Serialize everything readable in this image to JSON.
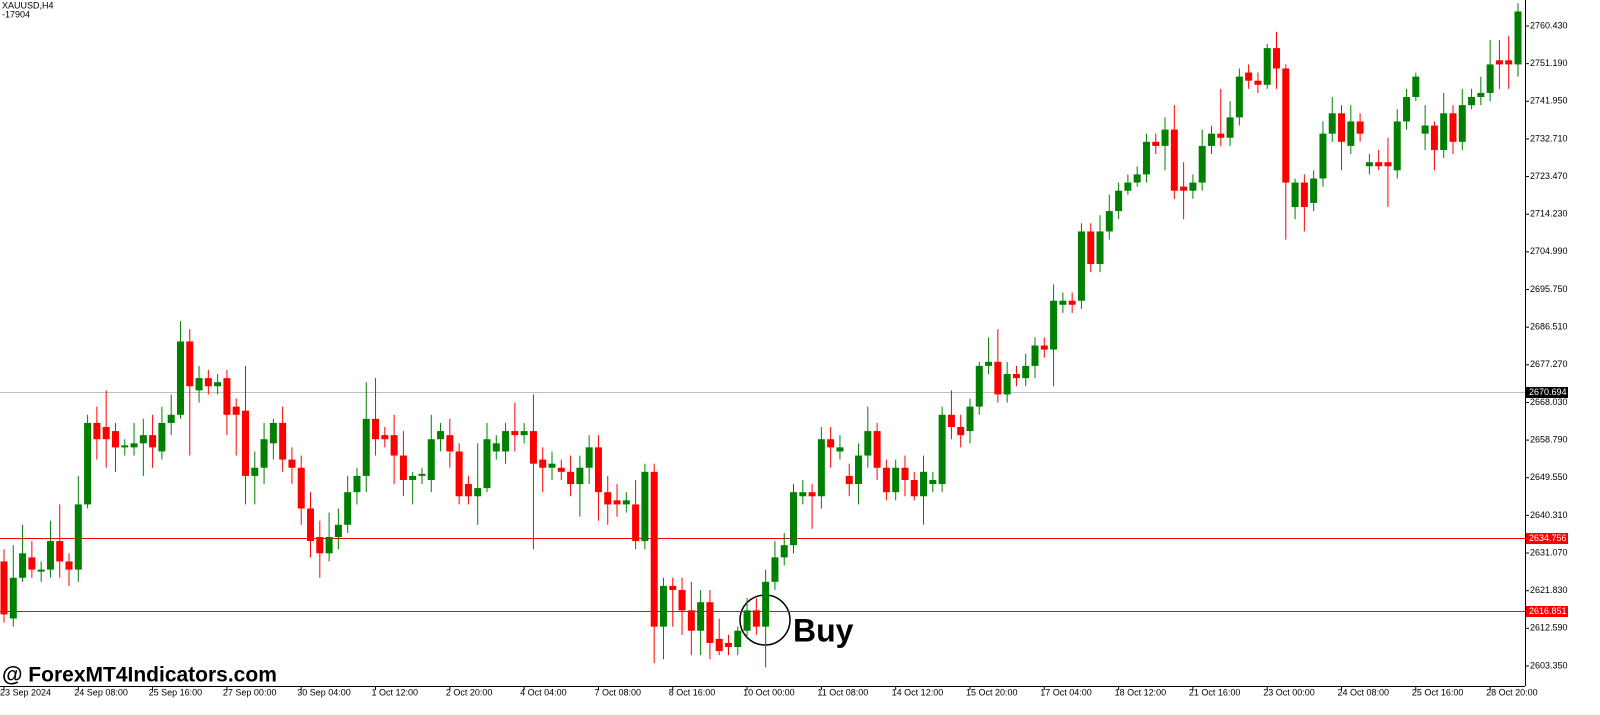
{
  "chart_data": {
    "type": "candlestick",
    "title": "XAUUSD,H4",
    "subtitle": "-17904",
    "categories": [
      "23 Sep 2024",
      null,
      null,
      null,
      null,
      null,
      null,
      null,
      "24 Sep 08:00",
      null,
      null,
      null,
      null,
      null,
      null,
      null,
      "25 Sep 16:00",
      null,
      null,
      null,
      null,
      null,
      null,
      null,
      "27 Sep 00:00",
      null,
      null,
      null,
      null,
      null,
      null,
      null,
      "30 Sep 04:00",
      null,
      null,
      null,
      null,
      null,
      null,
      null,
      "1 Oct 12:00",
      null,
      null,
      null,
      null,
      null,
      null,
      null,
      "2 Oct 20:00",
      null,
      null,
      null,
      null,
      null,
      null,
      null,
      "4 Oct 04:00",
      null,
      null,
      null,
      null,
      null,
      null,
      null,
      "7 Oct 08:00",
      null,
      null,
      null,
      null,
      null,
      null,
      null,
      "8 Oct 16:00",
      null,
      null,
      null,
      null,
      null,
      null,
      null,
      "10 Oct 00:00",
      null,
      null,
      null,
      null,
      null,
      null,
      null,
      "11 Oct 08:00",
      null,
      null,
      null,
      null,
      null,
      null,
      null,
      "14 Oct 12:00",
      null,
      null,
      null,
      null,
      null,
      null,
      null,
      "15 Oct 20:00",
      null,
      null,
      null,
      null,
      null,
      null,
      null,
      "17 Oct 04:00",
      null,
      null,
      null,
      null,
      null,
      null,
      null,
      "18 Oct 12:00",
      null,
      null,
      null,
      null,
      null,
      null,
      null,
      "21 Oct 16:00",
      null,
      null,
      null,
      null,
      null,
      null,
      null,
      "23 Oct 00:00",
      null,
      null,
      null,
      null,
      null,
      null,
      null,
      "24 Oct 08:00",
      null,
      null,
      null,
      null,
      null,
      null,
      null,
      "25 Oct 16:00",
      null,
      null,
      null,
      null,
      null,
      null,
      null,
      "28 Oct 20:00",
      null,
      null,
      null
    ],
    "open": [
      2629,
      2615,
      2625,
      2630,
      2626.5,
      2627,
      2634,
      2629,
      2627,
      2643,
      2663,
      2662,
      2661,
      2657,
      2657,
      2658,
      2660,
      2656,
      2663,
      2665,
      2683,
      2671,
      2674,
      2672,
      2674,
      2667,
      2666,
      2650,
      2652,
      2658,
      2663,
      2654,
      2652,
      2642,
      2635,
      2631,
      2635,
      2638,
      2646,
      2650,
      2664,
      2660,
      2660,
      2655,
      2649,
      2650,
      2649,
      2659,
      2660,
      2656,
      2648,
      2645,
      2647,
      2656,
      2656,
      2661,
      2660,
      2661,
      2654,
      2652,
      2652,
      2651,
      2648,
      2652,
      2657,
      2646,
      2644,
      2643,
      2643,
      2634,
      2651,
      2613,
      2623,
      2622,
      2617,
      2612,
      2619,
      2610,
      2609,
      2608,
      2612,
      2617,
      2613,
      2624,
      2630,
      2633,
      2645,
      2646,
      2645,
      2659,
      2656,
      2650,
      2648,
      2655,
      2661,
      2652,
      2646,
      2652,
      2649,
      2645,
      2648,
      2648,
      2665,
      2662,
      2661,
      2667,
      2677,
      2678,
      2670,
      2675,
      2674,
      2677,
      2682,
      2681,
      2692,
      2693,
      2693,
      2710,
      2702,
      2710,
      2715,
      2720,
      2722,
      2724,
      2732,
      2731,
      2735,
      2721,
      2720,
      2722,
      2731,
      2734,
      2733,
      2738,
      2749,
      2747,
      2746,
      2755,
      2750,
      2716,
      2722,
      2717,
      2723,
      2734,
      2739,
      2731,
      2737,
      2726,
      2727,
      2727,
      2725,
      2737,
      2743,
      2734,
      2736,
      2730,
      2739,
      2732,
      2741,
      2743,
      2744,
      2752,
      2752,
      2751
    ],
    "high": [
      2632,
      2633,
      2638,
      2634,
      2629,
      2639,
      2643,
      2631,
      2650,
      2665,
      2667,
      2671,
      2663,
      2659,
      2663,
      2664,
      2665,
      2667,
      2670,
      2688,
      2686,
      2677,
      2676,
      2675,
      2676,
      2669,
      2677,
      2656,
      2663,
      2664,
      2667,
      2657,
      2655,
      2646,
      2639,
      2641,
      2642,
      2650,
      2652,
      2673,
      2674,
      2662,
      2665,
      2661,
      2651,
      2652,
      2665,
      2663,
      2664,
      2658,
      2650,
      2658,
      2663,
      2660,
      2663,
      2668,
      2663,
      2670,
      2657,
      2656,
      2654,
      2655,
      2655,
      2660,
      2660,
      2650,
      2648,
      2646,
      2649,
      2653,
      2653,
      2625,
      2625,
      2625,
      2624,
      2622,
      2622,
      2615,
      2611,
      2613,
      2620,
      2620,
      2627,
      2634,
      2636,
      2648,
      2649,
      2648,
      2662,
      2662,
      2660,
      2653,
      2658,
      2667,
      2663,
      2654,
      2654,
      2655,
      2651,
      2655,
      2651,
      2667,
      2671,
      2665,
      2669,
      2678,
      2684,
      2686,
      2678,
      2677,
      2680,
      2684,
      2684,
      2697,
      2695,
      2695,
      2712,
      2712,
      2714,
      2719,
      2722,
      2724,
      2726,
      2734,
      2734,
      2738,
      2741,
      2727,
      2724,
      2735,
      2736,
      2745,
      2742,
      2750,
      2751,
      2749,
      2756,
      2759,
      2751,
      2723,
      2724,
      2725,
      2737,
      2743,
      2741,
      2741,
      2739,
      2729,
      2730,
      2733,
      2740,
      2745,
      2749,
      2741,
      2737,
      2744,
      2741,
      2745,
      2745,
      2748,
      2757,
      2757,
      2758,
      2766
    ],
    "low": [
      2614,
      2613,
      2624,
      2625,
      2624,
      2625,
      2625,
      2623,
      2624,
      2642,
      2654,
      2652,
      2651,
      2655,
      2655,
      2650,
      2652,
      2654,
      2660,
      2664,
      2655,
      2668,
      2670,
      2670,
      2660,
      2655,
      2643,
      2643,
      2648,
      2654,
      2651,
      2648,
      2638,
      2630,
      2625,
      2629,
      2632,
      2636,
      2643,
      2646,
      2655,
      2657,
      2648,
      2645,
      2643,
      2648,
      2646,
      2656,
      2652,
      2643,
      2643,
      2638,
      2646,
      2654,
      2653,
      2656,
      2658,
      2632,
      2646,
      2649,
      2649,
      2645,
      2640,
      2648,
      2639,
      2638,
      2640,
      2641,
      2632,
      2632,
      2604,
      2605,
      2613,
      2611,
      2606,
      2606,
      2605,
      2606,
      2606,
      2606,
      2610,
      2611,
      2603,
      2622,
      2628,
      2631,
      2643,
      2637,
      2642,
      2652,
      2654,
      2645,
      2643,
      2652,
      2649,
      2644,
      2644,
      2645,
      2644,
      2638,
      2646,
      2646,
      2659,
      2657,
      2658,
      2665,
      2675,
      2668,
      2668,
      2672,
      2672,
      2674,
      2679,
      2672,
      2690,
      2690,
      2691,
      2700,
      2700,
      2708,
      2713,
      2719,
      2721,
      2722,
      2729,
      2725,
      2718,
      2713,
      2718,
      2720,
      2729,
      2731,
      2731,
      2736,
      2745,
      2744,
      2745,
      2745,
      2708,
      2713,
      2710,
      2715,
      2721,
      2732,
      2725,
      2729,
      2732,
      2724,
      2725,
      2716,
      2723,
      2735,
      2742,
      2730,
      2725,
      2728,
      2729,
      2730,
      2740,
      2741,
      2742,
      2745,
      2745,
      2748
    ],
    "close": [
      2616,
      2625,
      2631,
      2627,
      2627,
      2634,
      2629,
      2627,
      2643,
      2663,
      2659,
      2659,
      2657,
      2657.5,
      2658,
      2660,
      2657,
      2663,
      2665,
      2683,
      2672,
      2674,
      2672,
      2673,
      2665,
      2665,
      2650,
      2652,
      2659,
      2663,
      2654,
      2652,
      2642,
      2634,
      2631,
      2635,
      2638,
      2646,
      2650,
      2664,
      2659,
      2659,
      2655,
      2649,
      2650,
      2650.5,
      2659,
      2661,
      2656,
      2645,
      2645,
      2647,
      2659,
      2658,
      2661,
      2660,
      2661,
      2653,
      2652,
      2653,
      2651,
      2648,
      2652,
      2657,
      2646,
      2643,
      2643,
      2644,
      2634,
      2651,
      2613,
      2623,
      2622,
      2617,
      2612,
      2619,
      2609,
      2607,
      2608,
      2612,
      2617,
      2613,
      2624,
      2630,
      2633,
      2646,
      2646,
      2645,
      2659,
      2657,
      2657,
      2648,
      2655,
      2661,
      2652,
      2646,
      2652,
      2649,
      2645,
      2651,
      2649,
      2665,
      2662,
      2660,
      2667,
      2677,
      2678,
      2670,
      2675,
      2674,
      2677,
      2682,
      2681,
      2693,
      2693,
      2692,
      2710,
      2702,
      2710,
      2715,
      2720,
      2722,
      2724,
      2732,
      2731,
      2735,
      2720,
      2720,
      2722,
      2731,
      2734,
      2733,
      2738,
      2748,
      2747,
      2746,
      2755,
      2750,
      2722,
      2722,
      2716,
      2723,
      2734,
      2739,
      2732,
      2737,
      2734,
      2727,
      2726,
      2726,
      2737,
      2743,
      2748,
      2736,
      2730,
      2739,
      2732,
      2741,
      2743,
      2744,
      2751,
      2751,
      2751,
      2764
    ],
    "up_color": "#008000",
    "down_color": "#ff0000",
    "ylim": [
      2598.43,
      2766.81
    ],
    "yticks": [
      {
        "value": 2760.43,
        "label": "2760.430"
      },
      {
        "value": 2751.19,
        "label": "2751.190"
      },
      {
        "value": 2741.95,
        "label": "2741.950"
      },
      {
        "value": 2732.71,
        "label": "2732.710"
      },
      {
        "value": 2723.47,
        "label": "2723.470"
      },
      {
        "value": 2714.23,
        "label": "2714.230"
      },
      {
        "value": 2704.99,
        "label": "2704.990"
      },
      {
        "value": 2695.75,
        "label": "2695.750"
      },
      {
        "value": 2686.51,
        "label": "2686.510"
      },
      {
        "value": 2677.27,
        "label": "2677.270"
      },
      {
        "value": 2668.03,
        "label": "2668.030"
      },
      {
        "value": 2658.79,
        "label": "2658.790"
      },
      {
        "value": 2649.55,
        "label": "2649.550"
      },
      {
        "value": 2640.31,
        "label": "2640.310"
      },
      {
        "value": 2631.07,
        "label": "2631.070"
      },
      {
        "value": 2621.83,
        "label": "2621.830"
      },
      {
        "value": 2612.59,
        "label": "2612.590"
      },
      {
        "value": 2603.35,
        "label": "2603.350"
      }
    ],
    "hlines": [
      {
        "value": 2670.694,
        "color": "#c0c0c0",
        "label_bg": "#000000"
      },
      {
        "value": 2634.756,
        "color": "#ff0000",
        "label_bg": "#ff0000"
      },
      {
        "value": 2616.851,
        "color": "#ff0000",
        "label_bg": "#ff0000"
      }
    ],
    "annotation": "Buy",
    "watermark": "@ ForexMT4Indicators.com"
  }
}
